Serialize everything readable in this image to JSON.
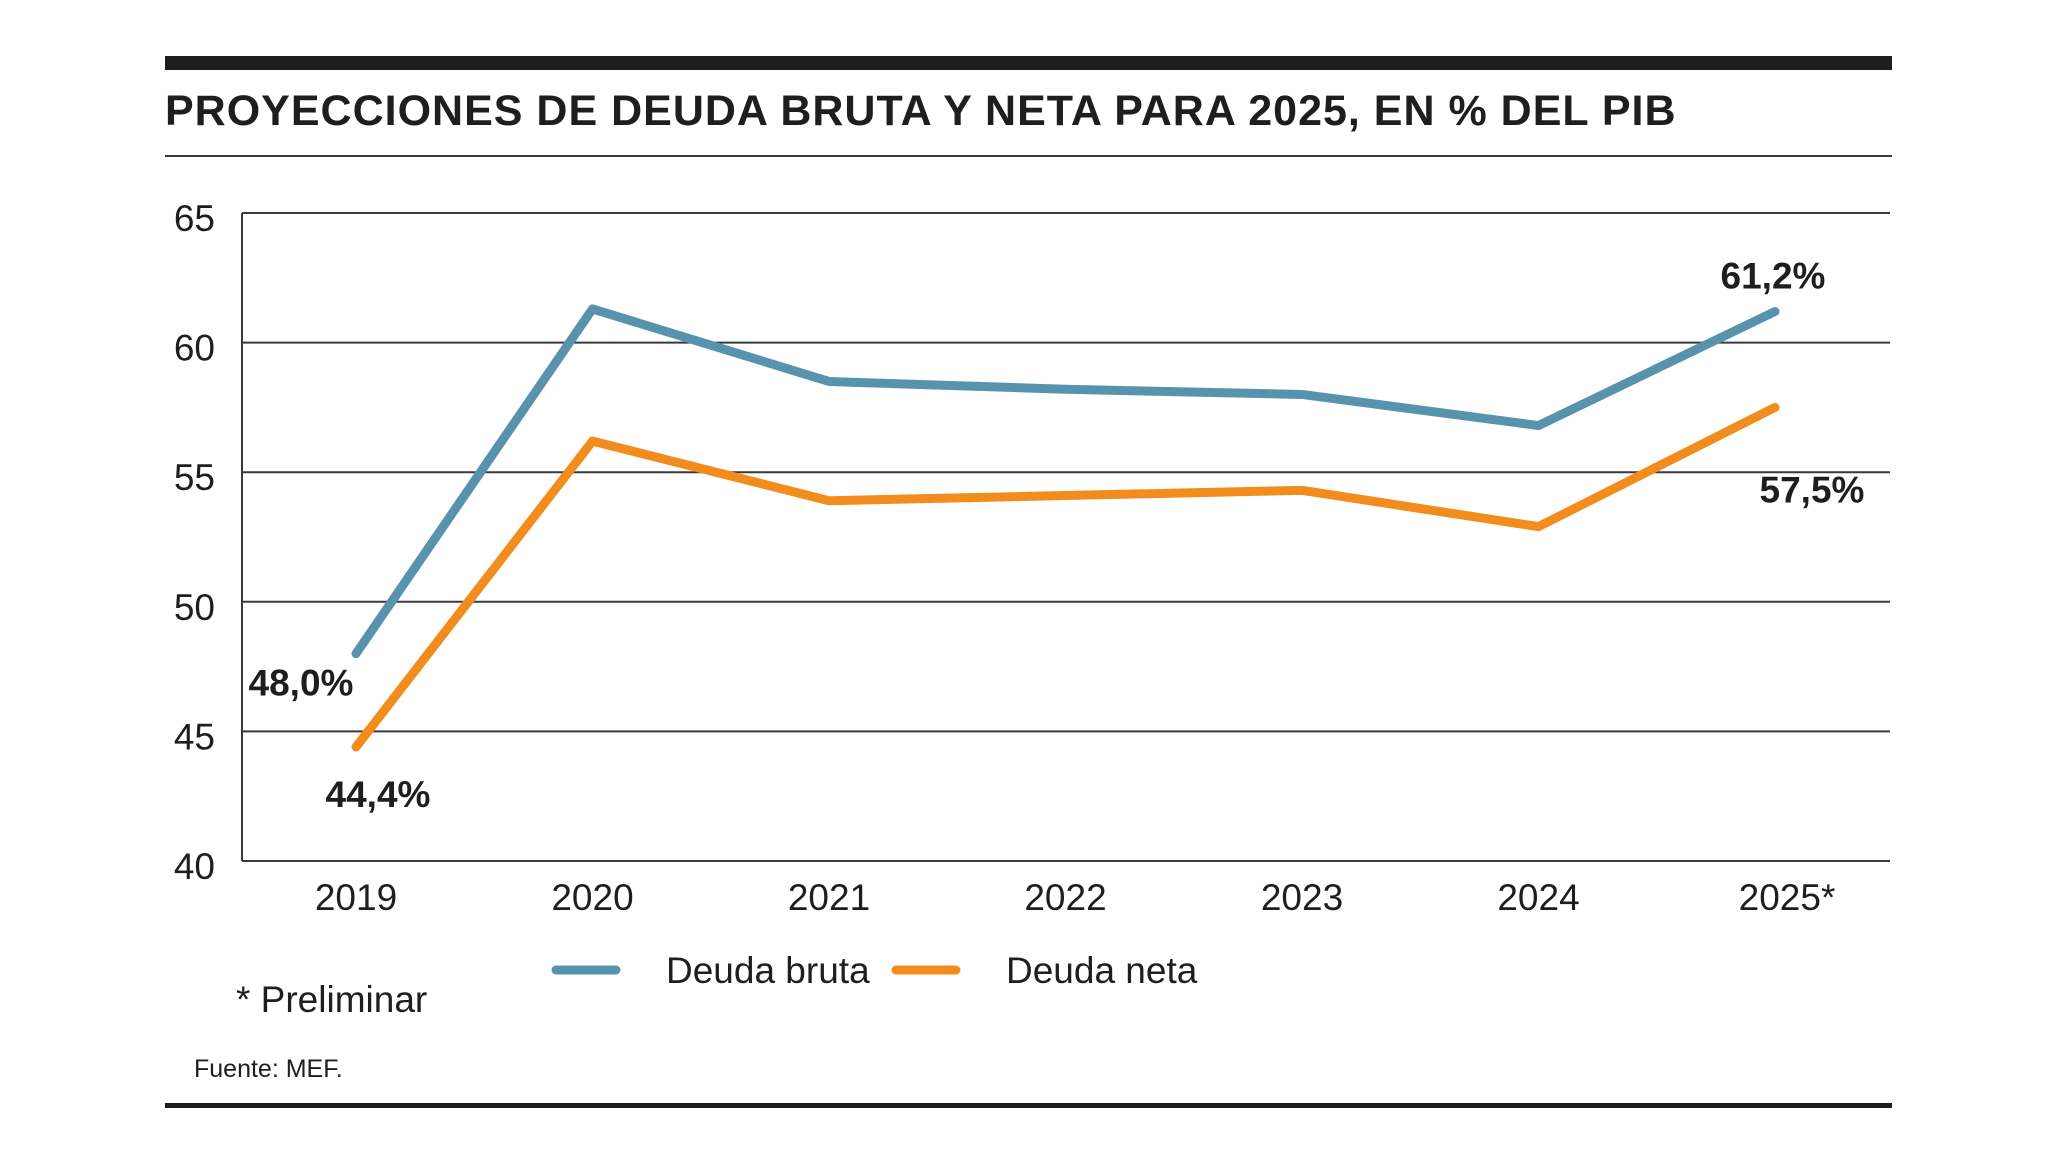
{
  "title": "PROYECCIONES DE DEUDA BRUTA Y NETA PARA 2025, EN % DEL PIB",
  "note": "* Preliminar",
  "source": "Fuente: MEF.",
  "colors": {
    "bruta": "#5893ad",
    "neta": "#f28c1c",
    "grid": "#3a3a3a",
    "text": "#1e1e1e"
  },
  "chart_data": {
    "type": "line",
    "title": "PROYECCIONES DE DEUDA BRUTA Y NETA PARA 2025, EN % DEL PIB",
    "xlabel": "",
    "ylabel": "",
    "categories": [
      "2019",
      "2020",
      "2021",
      "2022",
      "2023",
      "2024",
      "2025*"
    ],
    "ylim": [
      40,
      65
    ],
    "yticks": [
      65,
      60,
      55,
      50,
      45,
      40
    ],
    "grid": true,
    "legend_position": "bottom",
    "series": [
      {
        "name": "Deuda bruta",
        "color": "#5893ad",
        "values": [
          48.0,
          61.3,
          58.5,
          58.2,
          58.0,
          56.8,
          61.2
        ]
      },
      {
        "name": "Deuda neta",
        "color": "#f28c1c",
        "values": [
          44.4,
          56.2,
          53.9,
          54.1,
          54.3,
          52.9,
          57.5
        ]
      }
    ],
    "annotations": [
      {
        "text": "48,0%",
        "series": 0,
        "index": 0
      },
      {
        "text": "44,4%",
        "series": 1,
        "index": 0
      },
      {
        "text": "61,2%",
        "series": 0,
        "index": 6
      },
      {
        "text": "57,5%",
        "series": 1,
        "index": 6
      }
    ]
  }
}
